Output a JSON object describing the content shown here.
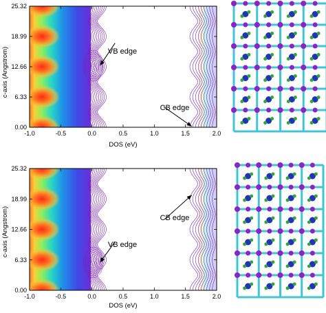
{
  "colors": {
    "contour": "#7a1fb5",
    "arrow": "#000000",
    "atom_cyan": "#3fc6d6",
    "atom_purple": "#8c22c8",
    "atom_blue": "#2133b8",
    "atom_green": "#2fa832"
  },
  "chart_data": [
    {
      "type": "heatmap",
      "xlabel": "DOS (eV)",
      "ylabel": "c-axis (Angstrom)",
      "xlim": [
        -1.0,
        2.0
      ],
      "ylim": [
        0.0,
        25.32
      ],
      "xticks": [
        "-1.0",
        "-0.5",
        "0.0",
        "0.5",
        "1.0",
        "1.5",
        "2.0"
      ],
      "yticks": [
        "0.00",
        "6.33",
        "12.66",
        "18.99",
        "25.32"
      ],
      "hotspots": [
        {
          "x": -0.8,
          "y": 0.0
        },
        {
          "x": -0.8,
          "y": 6.33
        },
        {
          "x": -0.8,
          "y": 12.66
        },
        {
          "x": -0.8,
          "y": 18.99
        },
        {
          "x": -0.8,
          "y": 25.32
        }
      ],
      "annotations": [
        {
          "text": "VB edge",
          "x": 0.37,
          "y": 17.6,
          "arrow_to": {
            "x": 0.13,
            "y": 12.9
          }
        },
        {
          "text": "CB edge",
          "x": 1.15,
          "y": 4.3,
          "arrow_to": {
            "x": 1.6,
            "y": 0.2
          }
        }
      ]
    },
    {
      "type": "heatmap",
      "xlabel": "DOS (eV)",
      "ylabel": "c-axis (Angstrom)",
      "xlim": [
        -1.0,
        2.0
      ],
      "ylim": [
        0.0,
        25.32
      ],
      "xticks": [
        "-1.0",
        "-0.5",
        "0.0",
        "0.5",
        "1.0",
        "1.5",
        "2.0"
      ],
      "yticks": [
        "0.00",
        "6.33",
        "12.66",
        "18.99",
        "25.32"
      ],
      "hotspots": [
        {
          "x": -0.8,
          "y": 0.0
        },
        {
          "x": -0.8,
          "y": 6.33
        },
        {
          "x": -0.8,
          "y": 12.66
        },
        {
          "x": -0.8,
          "y": 18.99
        },
        {
          "x": -0.8,
          "y": 25.32
        }
      ],
      "annotations": [
        {
          "text": "VB edge",
          "x": 0.37,
          "y": 10.1,
          "arrow_to": {
            "x": 0.13,
            "y": 5.8
          }
        },
        {
          "text": "CB edge",
          "x": 1.17,
          "y": 14.8,
          "arrow_to": {
            "x": 1.6,
            "y": 19.8
          }
        }
      ]
    }
  ]
}
